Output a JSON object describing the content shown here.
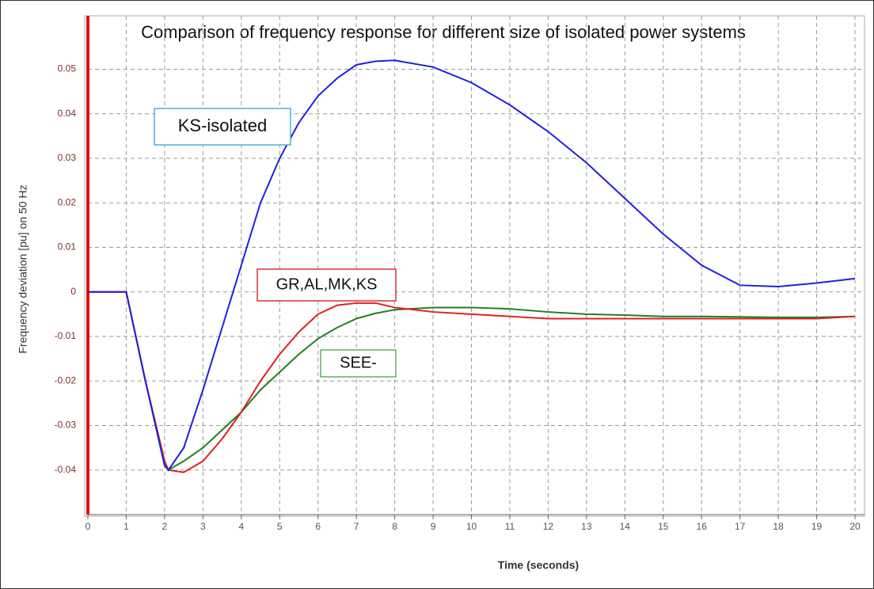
{
  "chart_data": {
    "type": "line",
    "title": "Comparison of frequency response for different size of isolated power systems",
    "x_label": "Time (seconds)",
    "y_label": "Frequency deviation [pu] on 50 Hz",
    "x": [
      0,
      1,
      1.5,
      2,
      2.1,
      2.5,
      3,
      3.5,
      4,
      4.5,
      5,
      5.5,
      6,
      6.5,
      7,
      7.5,
      8,
      9,
      10,
      11,
      12,
      13,
      14,
      15,
      16,
      17,
      18,
      19,
      20
    ],
    "series": [
      {
        "name": "KS-isolated",
        "color": "#2020e0",
        "box_color": "#4ab0d8",
        "values": [
          0,
          0,
          -0.02,
          -0.039,
          -0.04,
          -0.035,
          -0.022,
          -0.008,
          0.006,
          0.02,
          0.03,
          0.038,
          0.044,
          0.048,
          0.051,
          0.0518,
          0.052,
          0.0505,
          0.047,
          0.042,
          0.036,
          0.029,
          0.021,
          0.013,
          0.006,
          0.0015,
          0.0012,
          0.002,
          0.003
        ]
      },
      {
        "name": "GR,AL,MK,KS",
        "color": "#e02020",
        "box_color": "#e03030",
        "values": [
          0,
          0,
          -0.02,
          -0.038,
          -0.04,
          -0.0405,
          -0.038,
          -0.033,
          -0.027,
          -0.02,
          -0.014,
          -0.009,
          -0.005,
          -0.003,
          -0.0025,
          -0.0025,
          -0.0035,
          -0.0045,
          -0.005,
          -0.0055,
          -0.006,
          -0.006,
          -0.006,
          -0.006,
          -0.006,
          -0.006,
          -0.006,
          -0.006,
          -0.0055
        ]
      },
      {
        "name": "SEE-",
        "color": "#208020",
        "box_color": "#60b060",
        "values": [
          0,
          0,
          -0.02,
          -0.038,
          -0.04,
          -0.038,
          -0.035,
          -0.031,
          -0.027,
          -0.022,
          -0.018,
          -0.014,
          -0.0105,
          -0.008,
          -0.006,
          -0.0048,
          -0.004,
          -0.0035,
          -0.0035,
          -0.0038,
          -0.0045,
          -0.005,
          -0.0052,
          -0.0055,
          -0.0055,
          -0.0056,
          -0.0057,
          -0.0057,
          -0.0055
        ]
      }
    ],
    "xlim": [
      0,
      20
    ],
    "xticks": [
      0,
      1,
      2,
      3,
      4,
      5,
      6,
      7,
      8,
      9,
      10,
      11,
      12,
      13,
      14,
      15,
      16,
      17,
      18,
      19,
      20
    ],
    "ylim": [
      -0.05,
      0.062
    ],
    "yticks": [
      -0.04,
      -0.03,
      -0.02,
      -0.01,
      0,
      0.01,
      0.02,
      0.03,
      0.04,
      0.05
    ],
    "grid": true
  }
}
